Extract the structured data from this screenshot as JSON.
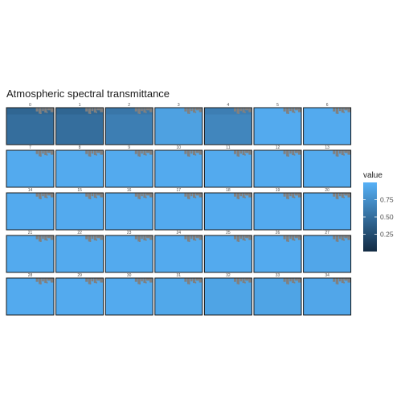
{
  "chart_data": {
    "type": "heatmap",
    "title": "Atmospheric spectral transmittance",
    "grid": false,
    "panels": [
      {
        "label": "0",
        "value": 0.5
      },
      {
        "label": "1",
        "value": 0.5
      },
      {
        "label": "2",
        "value": 0.62
      },
      {
        "label": "3",
        "value": 0.88
      },
      {
        "label": "4",
        "value": 0.68
      },
      {
        "label": "5",
        "value": 0.95
      },
      {
        "label": "6",
        "value": 0.95
      },
      {
        "label": "7",
        "value": 0.95
      },
      {
        "label": "8",
        "value": 0.95
      },
      {
        "label": "9",
        "value": 0.95
      },
      {
        "label": "10",
        "value": 0.95
      },
      {
        "label": "11",
        "value": 0.95
      },
      {
        "label": "12",
        "value": 0.95
      },
      {
        "label": "13",
        "value": 0.95
      },
      {
        "label": "14",
        "value": 0.95
      },
      {
        "label": "15",
        "value": 0.95
      },
      {
        "label": "16",
        "value": 0.95
      },
      {
        "label": "17",
        "value": 0.95
      },
      {
        "label": "18",
        "value": 0.95
      },
      {
        "label": "19",
        "value": 0.95
      },
      {
        "label": "20",
        "value": 0.95
      },
      {
        "label": "21",
        "value": 0.95
      },
      {
        "label": "22",
        "value": 0.95
      },
      {
        "label": "23",
        "value": 0.95
      },
      {
        "label": "24",
        "value": 0.95
      },
      {
        "label": "25",
        "value": 0.95
      },
      {
        "label": "26",
        "value": 0.95
      },
      {
        "label": "27",
        "value": 0.92
      },
      {
        "label": "28",
        "value": 0.95
      },
      {
        "label": "29",
        "value": 0.95
      },
      {
        "label": "30",
        "value": 0.95
      },
      {
        "label": "31",
        "value": 0.93
      },
      {
        "label": "32",
        "value": 0.9
      },
      {
        "label": "33",
        "value": 0.9
      },
      {
        "label": "34",
        "value": 0.92
      }
    ],
    "na_color": "#808080",
    "legend": {
      "title": "value",
      "placement": "right",
      "range": [
        0.0,
        1.0
      ],
      "ticks": [
        {
          "label": "0.25",
          "value": 0.25
        },
        {
          "label": "0.50",
          "value": 0.5
        },
        {
          "label": "0.75",
          "value": 0.75
        }
      ],
      "low_color": "#132B43",
      "high_color": "#56B1F7"
    }
  }
}
